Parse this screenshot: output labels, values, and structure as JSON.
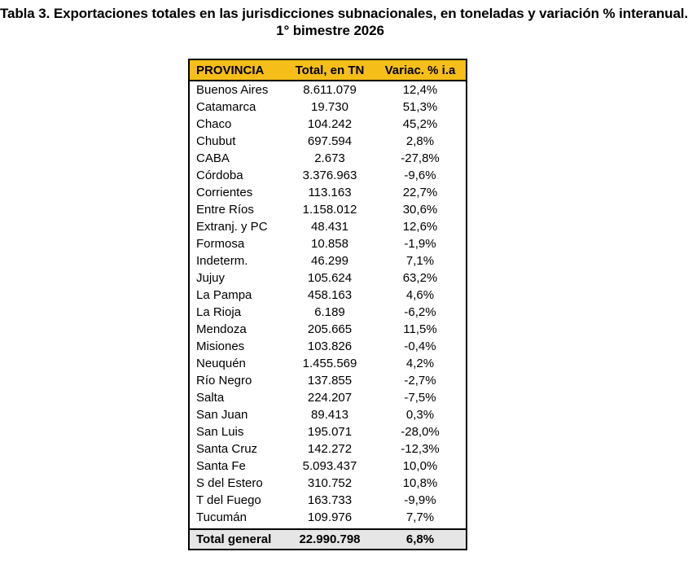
{
  "title": {
    "line1": "Tabla 3. Exportaciones totales en las jurisdicciones subnacionales, en toneladas y variación % interanual.",
    "line2": "1° bimestre 2026"
  },
  "table": {
    "headers": [
      "PROVINCIA",
      "Total, en TN",
      "Variac. % i.a"
    ],
    "rows": [
      [
        "Buenos Aires",
        "8.611.079",
        "12,4%"
      ],
      [
        "Catamarca",
        "19.730",
        "51,3%"
      ],
      [
        "Chaco",
        "104.242",
        "45,2%"
      ],
      [
        "Chubut",
        "697.594",
        "2,8%"
      ],
      [
        "CABA",
        "2.673",
        "-27,8%"
      ],
      [
        "Córdoba",
        "3.376.963",
        "-9,6%"
      ],
      [
        "Corrientes",
        "113.163",
        "22,7%"
      ],
      [
        "Entre Ríos",
        "1.158.012",
        "30,6%"
      ],
      [
        "Extranj. y PC",
        "48.431",
        "12,6%"
      ],
      [
        "Formosa",
        "10.858",
        "-1,9%"
      ],
      [
        "Indeterm.",
        "46.299",
        "7,1%"
      ],
      [
        "Jujuy",
        "105.624",
        "63,2%"
      ],
      [
        "La Pampa",
        "458.163",
        "4,6%"
      ],
      [
        "La Rioja",
        "6.189",
        "-6,2%"
      ],
      [
        "Mendoza",
        "205.665",
        "11,5%"
      ],
      [
        "Misiones",
        "103.826",
        "-0,4%"
      ],
      [
        "Neuquén",
        "1.455.569",
        "4,2%"
      ],
      [
        "Río Negro",
        "137.855",
        "-2,7%"
      ],
      [
        "Salta",
        "224.207",
        "-7,5%"
      ],
      [
        "San Juan",
        "89.413",
        "0,3%"
      ],
      [
        "San Luis",
        "195.071",
        "-28,0%"
      ],
      [
        "Santa Cruz",
        "142.272",
        "-12,3%"
      ],
      [
        "Santa Fe",
        "5.093.437",
        "10,0%"
      ],
      [
        "S del Estero",
        "310.752",
        "10,8%"
      ],
      [
        "T del Fuego",
        "163.733",
        "-9,9%"
      ],
      [
        "Tucumán",
        "109.976",
        "7,7%"
      ]
    ],
    "total": [
      "Total general",
      "22.990.798",
      "6,8%"
    ]
  }
}
